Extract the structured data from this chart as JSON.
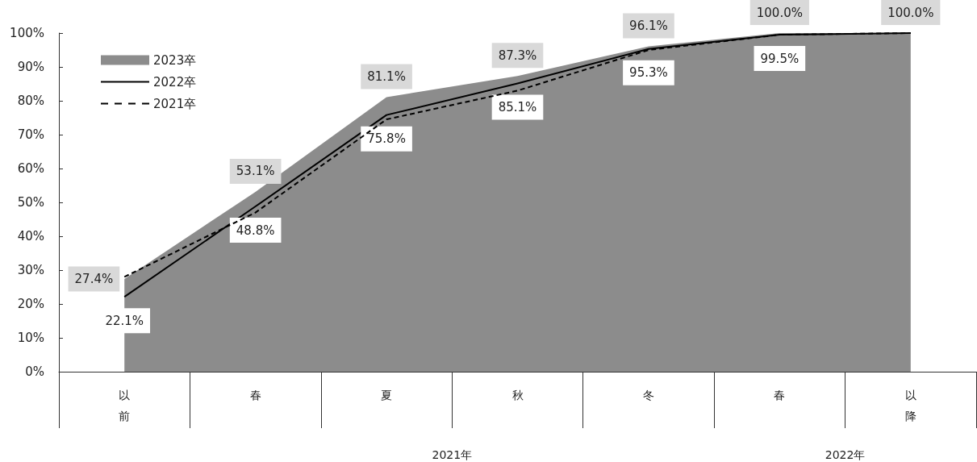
{
  "chart_data": {
    "type": "line",
    "categories": [
      "以前",
      "春",
      "夏",
      "秋",
      "冬",
      "春",
      "以降"
    ],
    "series": [
      {
        "name": "2023卒",
        "type": "area",
        "color": "#8c8c8c",
        "values": [
          27.4,
          53.1,
          81.1,
          87.3,
          96.1,
          100.0,
          100.0
        ],
        "value_labels": [
          "27.4%",
          "53.1%",
          "81.1%",
          "87.3%",
          "96.1%",
          "100.0%",
          "100.0%"
        ]
      },
      {
        "name": "2022卒",
        "color": "#000000",
        "line_style": "solid",
        "values": [
          22.1,
          48.8,
          75.8,
          85.1,
          95.3,
          99.5,
          100.0
        ],
        "value_labels": [
          "22.1%",
          "48.8%",
          "75.8%",
          "85.1%",
          "95.3%",
          "99.5%",
          null
        ]
      },
      {
        "name": "2021卒",
        "color": "#000000",
        "line_style": "dashed",
        "values": [
          28,
          47,
          74.5,
          83,
          95,
          99.5,
          100
        ]
      }
    ],
    "ylim": [
      0,
      100
    ],
    "yticks": [
      {
        "value": 0,
        "label": "0%"
      },
      {
        "value": 10,
        "label": "10%"
      },
      {
        "value": 20,
        "label": "20%"
      },
      {
        "value": 30,
        "label": "30%"
      },
      {
        "value": 40,
        "label": "40%"
      },
      {
        "value": 50,
        "label": "50%"
      },
      {
        "value": 60,
        "label": "60%"
      },
      {
        "value": 70,
        "label": "70%"
      },
      {
        "value": 80,
        "label": "80%"
      },
      {
        "value": 90,
        "label": "90%"
      },
      {
        "value": 100,
        "label": "100%"
      }
    ],
    "annotations": [
      "2021年",
      "2022年"
    ],
    "grid": false,
    "legend": "top left",
    "marker": "none"
  }
}
